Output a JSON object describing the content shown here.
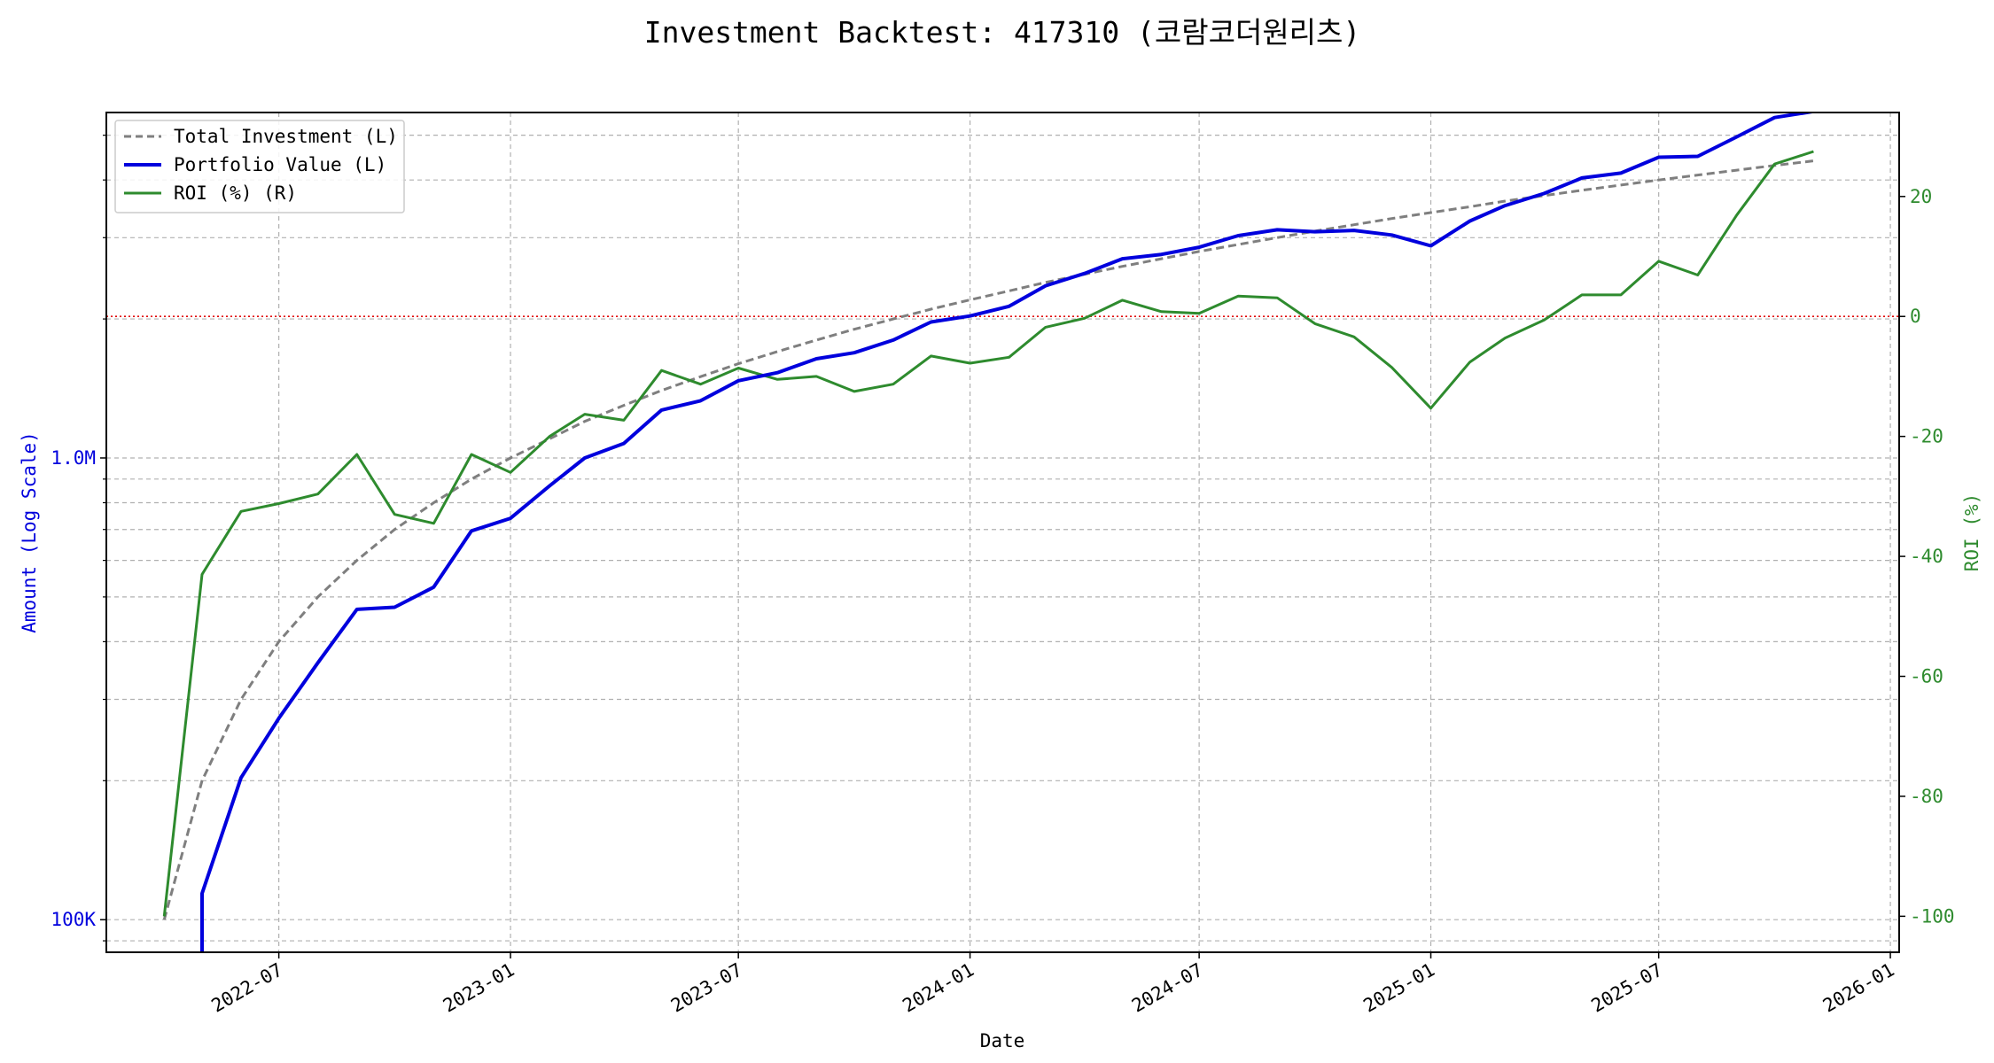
{
  "chart_data": {
    "type": "line",
    "title": "Investment Backtest: 417310 (코람코더원리츠)",
    "xlabel": "Date",
    "ylabel_left": "Amount (Log Scale)",
    "ylabel_right": "ROI (%)",
    "x_ticks": [
      "2022-07",
      "2023-01",
      "2023-07",
      "2024-01",
      "2024-07",
      "2025-01",
      "2025-07",
      "2026-01"
    ],
    "y_left_ticks": [
      "100K",
      "1.0M"
    ],
    "y_right_ticks": [
      "20",
      "0",
      "-20",
      "-40",
      "-60",
      "-80",
      "-100"
    ],
    "y_left_scale": "log",
    "y_left_range": [
      85000,
      5600000
    ],
    "y_right_range": [
      -106,
      34
    ],
    "x_range": [
      "2022-02-14",
      "2026-01-08"
    ],
    "grid": true,
    "legend_position": "top-left",
    "reference_line": {
      "axis": "right",
      "value": 0,
      "color": "#e00000"
    },
    "x": [
      "2022-04-01",
      "2022-05-01",
      "2022-06-01",
      "2022-07-01",
      "2022-08-01",
      "2022-09-01",
      "2022-10-01",
      "2022-11-01",
      "2022-12-01",
      "2023-01-01",
      "2023-02-01",
      "2023-03-01",
      "2023-04-01",
      "2023-05-01",
      "2023-06-01",
      "2023-07-01",
      "2023-08-01",
      "2023-09-01",
      "2023-10-01",
      "2023-11-01",
      "2023-12-01",
      "2024-01-01",
      "2024-02-01",
      "2024-03-01",
      "2024-04-01",
      "2024-05-01",
      "2024-06-01",
      "2024-07-01",
      "2024-08-01",
      "2024-09-01",
      "2024-10-01",
      "2024-11-01",
      "2024-12-01",
      "2025-01-01",
      "2025-02-01",
      "2025-03-01",
      "2025-04-01",
      "2025-05-01",
      "2025-06-01",
      "2025-07-01",
      "2025-08-01",
      "2025-09-01",
      "2025-10-01",
      "2025-11-01"
    ],
    "series": [
      {
        "name": "Total Investment (L)",
        "axis": "left",
        "color": "#7f7f7f",
        "style": "dashed",
        "values": [
          100000,
          200000,
          300000,
          400000,
          500000,
          600000,
          700000,
          800000,
          900000,
          1000000,
          1100000,
          1200000,
          1300000,
          1400000,
          1500000,
          1600000,
          1700000,
          1800000,
          1900000,
          2000000,
          2100000,
          2200000,
          2300000,
          2400000,
          2500000,
          2600000,
          2700000,
          2800000,
          2900000,
          3000000,
          3100000,
          3200000,
          3300000,
          3400000,
          3500000,
          3600000,
          3700000,
          3800000,
          3900000,
          4000000,
          4100000,
          4200000,
          4300000,
          4400000
        ]
      },
      {
        "name": "Portfolio Value (L)",
        "axis": "left",
        "color": "#0000dd",
        "style": "solid",
        "values": [
          null,
          114000,
          203000,
          273000,
          360000,
          470000,
          475000,
          525000,
          695000,
          740000,
          870000,
          1000000,
          1075000,
          1270000,
          1330000,
          1470000,
          1530000,
          1640000,
          1690000,
          1800000,
          1970000,
          2030000,
          2130000,
          2360000,
          2510000,
          2700000,
          2760000,
          2860000,
          3030000,
          3120000,
          3090000,
          3110000,
          3040000,
          2880000,
          3260000,
          3520000,
          3740000,
          4040000,
          4140000,
          4480000,
          4500000,
          4960000,
          5460000,
          5630000
        ]
      },
      {
        "name": "ROI (%) (R)",
        "axis": "right",
        "color": "#2e8b2e",
        "style": "solid",
        "values": [
          -100,
          -43,
          -32.5,
          -31.2,
          -29.6,
          -23,
          -33,
          -34.5,
          -23,
          -26,
          -20,
          -16.3,
          -17.3,
          -9,
          -11.3,
          -8.6,
          -10.5,
          -10,
          -12.5,
          -11.3,
          -6.6,
          -7.8,
          -6.8,
          -1.8,
          -0.3,
          2.7,
          0.8,
          0.5,
          3.4,
          3.1,
          -1.2,
          -3.4,
          -8.5,
          -15.3,
          -7.6,
          -3.6,
          -0.6,
          3.6,
          3.6,
          9.2,
          6.9,
          16.9,
          25.4,
          27.5
        ]
      }
    ]
  }
}
